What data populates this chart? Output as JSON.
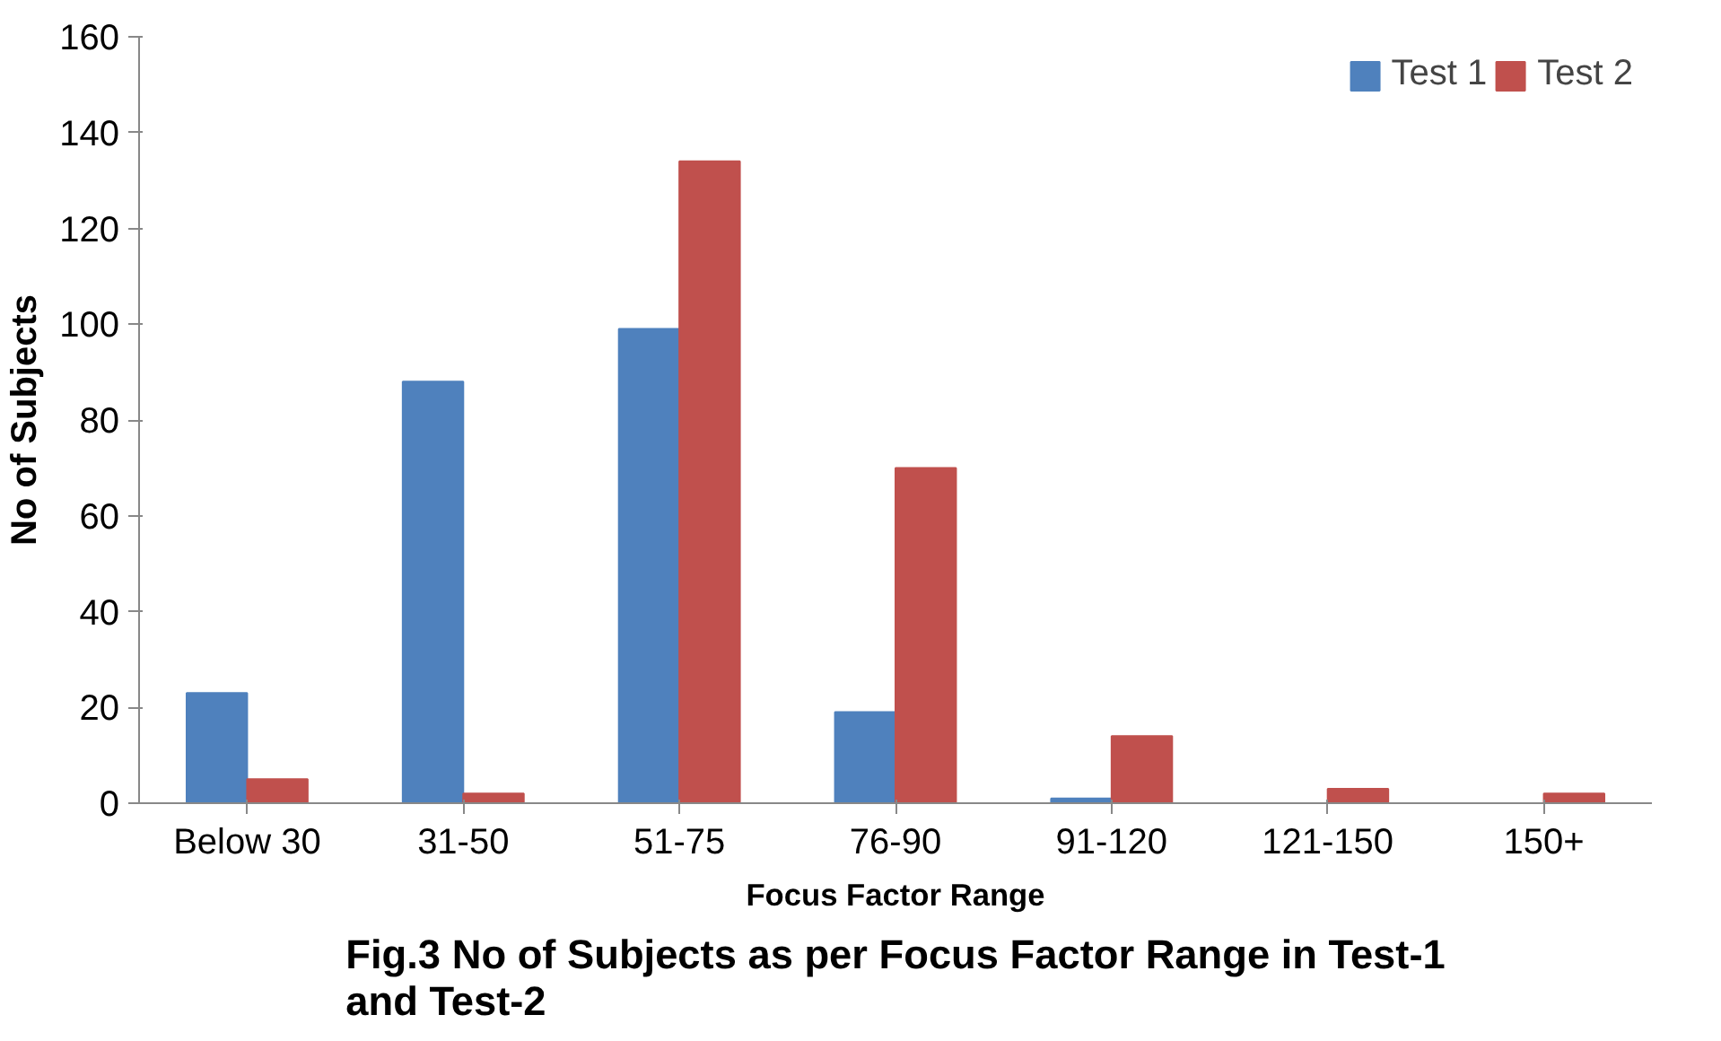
{
  "chart_data": {
    "type": "bar",
    "title": "Fig.3 No of Subjects as per Focus Factor Range in Test-1 and Test-2",
    "xlabel": "Focus Factor Range",
    "ylabel": "No of Subjects",
    "categories": [
      "Below 30",
      "31-50",
      "51-75",
      "76-90",
      "91-120",
      "121-150",
      "150+"
    ],
    "series": [
      {
        "name": "Test 1",
        "color": "#4f81bd",
        "values": [
          23,
          88,
          99,
          19,
          1,
          0,
          0
        ]
      },
      {
        "name": "Test 2",
        "color": "#c0504d",
        "values": [
          5,
          2,
          134,
          70,
          14,
          3,
          2
        ]
      }
    ],
    "ylim": [
      0,
      160
    ],
    "yticks": [
      0,
      20,
      40,
      60,
      80,
      100,
      120,
      140,
      160
    ],
    "legend": "top right"
  }
}
